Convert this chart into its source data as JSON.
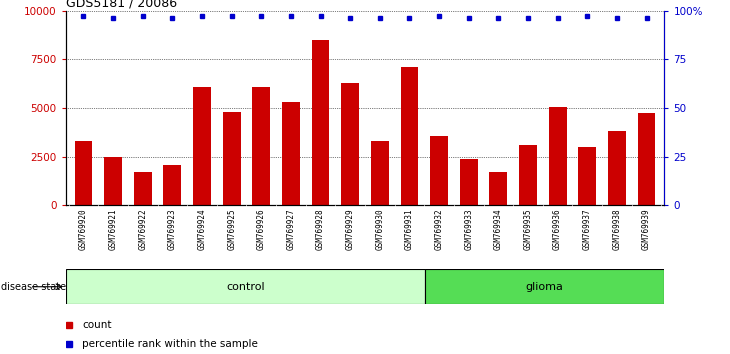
{
  "title": "GDS5181 / 20086",
  "samples": [
    "GSM769920",
    "GSM769921",
    "GSM769922",
    "GSM769923",
    "GSM769924",
    "GSM769925",
    "GSM769926",
    "GSM769927",
    "GSM769928",
    "GSM769929",
    "GSM769930",
    "GSM769931",
    "GSM769932",
    "GSM769933",
    "GSM769934",
    "GSM769935",
    "GSM769936",
    "GSM769937",
    "GSM769938",
    "GSM769939"
  ],
  "counts": [
    3300,
    2500,
    1700,
    2050,
    6100,
    4800,
    6100,
    5300,
    8500,
    6300,
    3300,
    7100,
    3550,
    2400,
    1700,
    3100,
    5050,
    3000,
    3800,
    4750
  ],
  "percentile_ranks": [
    97,
    96,
    97,
    96,
    97,
    97,
    97,
    97,
    97,
    96,
    96,
    96,
    97,
    96,
    96,
    96,
    96,
    97,
    96,
    96
  ],
  "control_count": 12,
  "glioma_count": 8,
  "ylim_left": [
    0,
    10000
  ],
  "ylim_right": [
    0,
    100
  ],
  "yticks_left": [
    0,
    2500,
    5000,
    7500,
    10000
  ],
  "ytick_labels_left": [
    "0",
    "2500",
    "5000",
    "7500",
    "10000"
  ],
  "yticks_right": [
    0,
    25,
    50,
    75,
    100
  ],
  "ytick_labels_right": [
    "0",
    "25",
    "50",
    "75",
    "100%"
  ],
  "bar_color": "#cc0000",
  "dot_color": "#0000cc",
  "control_facecolor": "#ccffcc",
  "glioma_facecolor": "#55dd55",
  "label_facecolor": "#dddddd",
  "grid_color": "#000000",
  "legend_count_color": "#cc0000",
  "legend_pct_color": "#0000cc",
  "fig_bg": "#ffffff"
}
